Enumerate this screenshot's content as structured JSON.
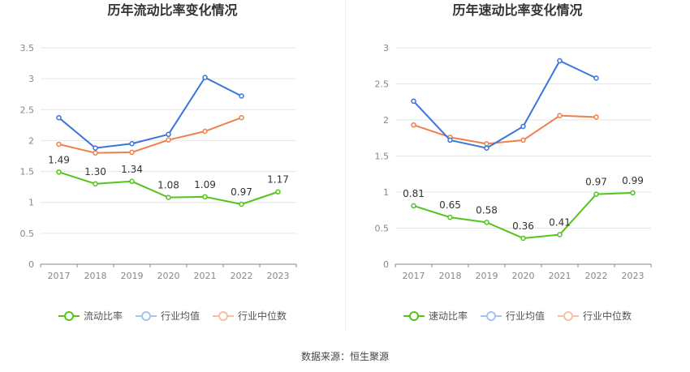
{
  "source": "数据来源：恒生聚源",
  "chart_data": [
    {
      "type": "line",
      "title": "历年流动比率变化情况",
      "categories": [
        "2017",
        "2018",
        "2019",
        "2020",
        "2021",
        "2022",
        "2023"
      ],
      "ylim": [
        0,
        3.5
      ],
      "yticks": [
        "0",
        "0.5",
        "1",
        "1.5",
        "2",
        "2.5",
        "3",
        "3.5"
      ],
      "grid": true,
      "legend_position": "bottom",
      "series": [
        {
          "name": "流动比率",
          "color": "#52c41a",
          "values": [
            1.49,
            1.3,
            1.34,
            1.08,
            1.09,
            0.97,
            1.17
          ],
          "labels": [
            "1.49",
            "1.30",
            "1.34",
            "1.08",
            "1.09",
            "0.97",
            "1.17"
          ]
        },
        {
          "name": "行业均值",
          "color": "#3a75d9",
          "values": [
            2.37,
            1.88,
            1.95,
            2.1,
            3.02,
            2.72,
            null
          ]
        },
        {
          "name": "行业中位数",
          "color": "#f07f4b",
          "values": [
            1.94,
            1.8,
            1.81,
            2.01,
            2.15,
            2.37,
            null
          ]
        }
      ]
    },
    {
      "type": "line",
      "title": "历年速动比率变化情况",
      "categories": [
        "2017",
        "2018",
        "2019",
        "2020",
        "2021",
        "2022",
        "2023"
      ],
      "ylim": [
        0,
        3
      ],
      "yticks": [
        "0",
        "0.5",
        "1",
        "1.5",
        "2",
        "2.5",
        "3"
      ],
      "grid": true,
      "legend_position": "bottom",
      "series": [
        {
          "name": "速动比率",
          "color": "#52c41a",
          "values": [
            0.81,
            0.65,
            0.58,
            0.36,
            0.41,
            0.97,
            0.99
          ],
          "labels": [
            "0.81",
            "0.65",
            "0.58",
            "0.36",
            "0.41",
            "0.97",
            "0.99"
          ]
        },
        {
          "name": "行业均值",
          "color": "#3a75d9",
          "values": [
            2.26,
            1.72,
            1.61,
            1.91,
            2.82,
            2.58,
            null
          ]
        },
        {
          "name": "行业中位数",
          "color": "#f07f4b",
          "values": [
            1.93,
            1.76,
            1.67,
            1.72,
            2.06,
            2.04,
            null
          ]
        }
      ]
    }
  ]
}
